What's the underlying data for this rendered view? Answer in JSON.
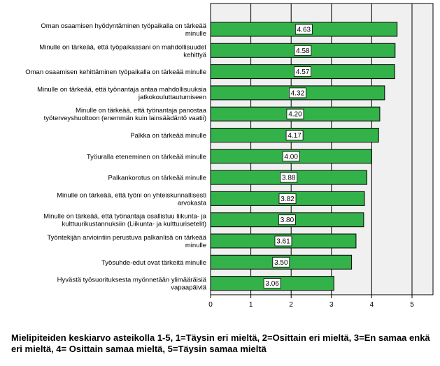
{
  "chart_data": {
    "type": "bar",
    "orientation": "horizontal",
    "xlim": [
      0,
      5
    ],
    "x_ticks": [
      "0",
      "1",
      "2",
      "3",
      "4",
      "5"
    ],
    "grid": true,
    "bar_color": "#33b24a",
    "plot_background": "#f0f0f0",
    "categories": [
      [
        "Oman osaamisen hyödyntäminen työpaikalla on tärkeää",
        "minulle"
      ],
      [
        "Minulle on tärkeää, että työpaikassani on mahdollisuudet",
        "kehittyä"
      ],
      [
        "Oman osaamisen kehittäminen työpaikalla on tärkeää minulle"
      ],
      [
        "Minulle on tärkeää, että työnantaja antaa mahdollisuuksia",
        "jatkokouluttautumiseen"
      ],
      [
        "Minulle on tärkeää, että työnantaja panostaa",
        "työterveyshuoltoon (enemmän kuin lainsäädäntö vaatii)"
      ],
      [
        "Palkka on tärkeää minulle"
      ],
      [
        "Työuralla eteneminen on tärkeää minulle"
      ],
      [
        "Palkankorotus on tärkeää minulle"
      ],
      [
        "Minulle on tärkeää, että työni on yhteiskunnallisesti",
        "arvokasta"
      ],
      [
        "Minulle on tärkeää, että työnantaja osallistuu liikunta- ja",
        "kulttuurikustannuksiin (Liikunta- ja kulttuurisetelit)"
      ],
      [
        "Työntekijän arviointiin perustuva palkanlisä on tärkeää",
        "minulle"
      ],
      [
        "Työsuhde-edut ovat tärkeitä minulle"
      ],
      [
        "Hyvästä työsuorituksesta myönnetään ylimääräisiä",
        "vapaapäiviä"
      ]
    ],
    "values": [
      4.63,
      4.58,
      4.57,
      4.32,
      4.2,
      4.17,
      4.0,
      3.88,
      3.82,
      3.8,
      3.61,
      3.5,
      3.06
    ],
    "value_labels": [
      "4.63",
      "4.58",
      "4.57",
      "4.32",
      "4.20",
      "4.17",
      "4.00",
      "3.88",
      "3.82",
      "3.80",
      "3.61",
      "3.50",
      "3.06"
    ]
  },
  "caption": "Mielipiteiden keskiarvo asteikolla 1-5, 1=Täysin eri mieltä, 2=Osittain eri mieltä, 3=En samaa enkä eri mieltä, 4= Osittain samaa mieltä, 5=Täysin samaa mieltä"
}
